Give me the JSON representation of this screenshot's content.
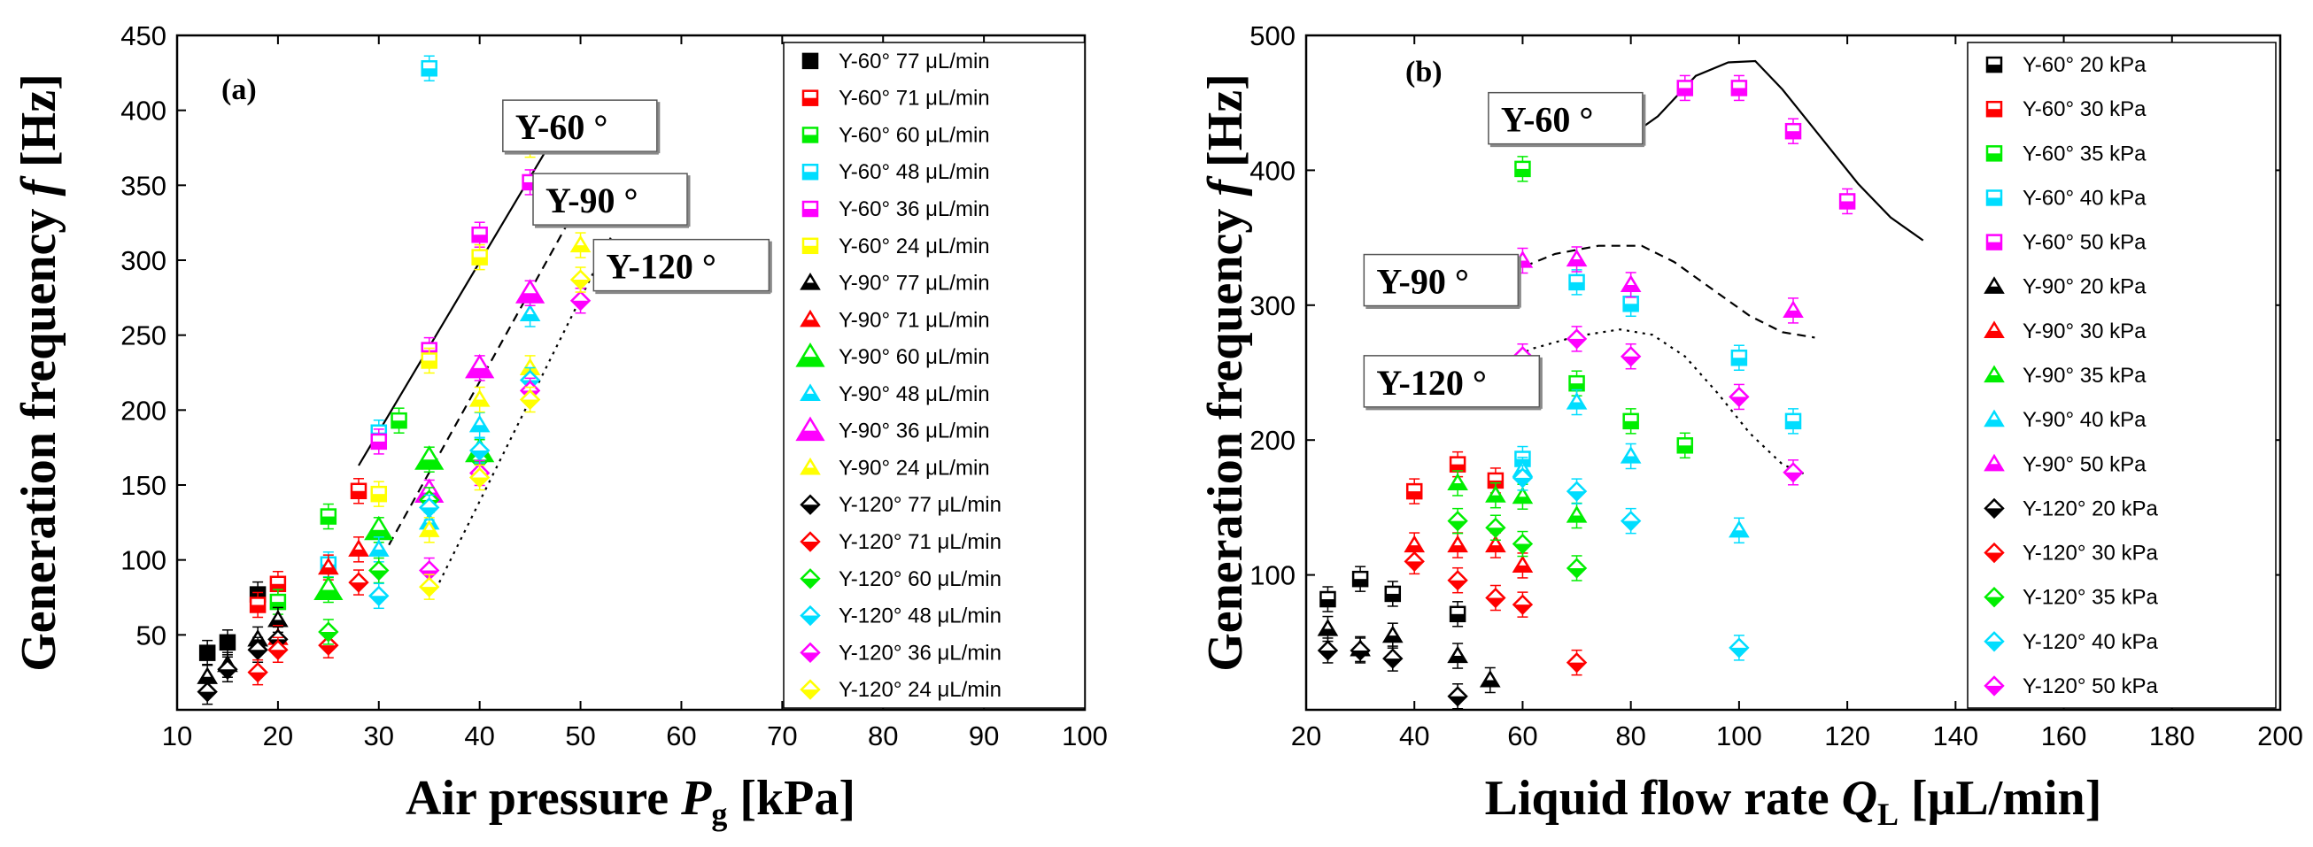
{
  "chart_data": [
    {
      "type": "scatter",
      "panel_label": "(a)",
      "xlabel": "Air pressure P_g [kPa]",
      "xlabel_parts": {
        "main": "Air pressure ",
        "var": "P",
        "sub": "g",
        "unit": " [kPa]"
      },
      "ylabel": "Generation frequency f [Hz]",
      "ylabel_parts": {
        "main": "Generation frequency ",
        "var": "f",
        "unit": " [Hz]"
      },
      "xlim": [
        10,
        100
      ],
      "ylim": [
        0,
        450
      ],
      "xticks": [
        10,
        20,
        30,
        40,
        50,
        60,
        70,
        80,
        90,
        100
      ],
      "yticks": [
        50,
        100,
        150,
        200,
        250,
        300,
        350,
        400,
        450
      ],
      "legend_position": "right",
      "series": [
        {
          "name": "Y-60° 77 μL/min",
          "marker": "square",
          "fill": "solid",
          "color": "#000000",
          "points": [
            [
              13,
              38
            ],
            [
              15,
              45
            ],
            [
              18,
              77
            ]
          ]
        },
        {
          "name": "Y-60° 71 μL/min",
          "marker": "square",
          "fill": "half",
          "color": "#ff0000",
          "points": [
            [
              18,
              70
            ],
            [
              20,
              84
            ],
            [
              28,
              146
            ]
          ]
        },
        {
          "name": "Y-60° 60 μL/min",
          "marker": "square",
          "fill": "half",
          "color": "#00ee00",
          "points": [
            [
              20,
              72
            ],
            [
              25,
              129
            ],
            [
              32,
              193
            ]
          ]
        },
        {
          "name": "Y-60° 48 μL/min",
          "marker": "square",
          "fill": "half",
          "color": "#00ddff",
          "points": [
            [
              25,
              97
            ],
            [
              30,
              185
            ],
            [
              35,
              428
            ]
          ]
        },
        {
          "name": "Y-60° 36 μL/min",
          "marker": "square",
          "fill": "half",
          "color": "#ff00ff",
          "points": [
            [
              30,
              179
            ],
            [
              35,
              240
            ],
            [
              40,
              317
            ],
            [
              45,
              352
            ]
          ]
        },
        {
          "name": "Y-60° 24 μL/min",
          "marker": "square",
          "fill": "half",
          "color": "#ffff00",
          "points": [
            [
              30,
              144
            ],
            [
              35,
              233
            ],
            [
              40,
              302
            ],
            [
              45,
              377
            ]
          ]
        },
        {
          "name": "Y-90° 77 μL/min",
          "marker": "triangle",
          "fill": "half",
          "color": "#000000",
          "points": [
            [
              13,
              22
            ],
            [
              15,
              30
            ],
            [
              18,
              47
            ],
            [
              20,
              60
            ]
          ]
        },
        {
          "name": "Y-90° 71 μL/min",
          "marker": "triangle",
          "fill": "half",
          "color": "#ff0000",
          "points": [
            [
              20,
              48
            ],
            [
              25,
              95
            ],
            [
              28,
              107
            ]
          ]
        },
        {
          "name": "Y-90° 60 μL/min",
          "marker": "triangle",
          "fill": "half",
          "color": "#00ee00",
          "points": [
            [
              25,
              80
            ],
            [
              30,
              120
            ],
            [
              35,
              167
            ],
            [
              40,
              172
            ]
          ]
        },
        {
          "name": "Y-90° 48 μL/min",
          "marker": "triangle",
          "fill": "half",
          "color": "#00ddff",
          "points": [
            [
              30,
              107
            ],
            [
              35,
              125
            ],
            [
              40,
              190
            ],
            [
              45,
              264
            ]
          ]
        },
        {
          "name": "Y-90° 36 μL/min",
          "marker": "triangle",
          "fill": "half",
          "color": "#ff00ff",
          "points": [
            [
              35,
              145
            ],
            [
              40,
              228
            ],
            [
              45,
              278
            ],
            [
              50,
              335
            ]
          ]
        },
        {
          "name": "Y-90° 24 μL/min",
          "marker": "triangle",
          "fill": "half",
          "color": "#ffff00",
          "points": [
            [
              35,
              120
            ],
            [
              40,
              207
            ],
            [
              45,
              228
            ],
            [
              50,
              310
            ]
          ]
        },
        {
          "name": "Y-120° 77 μL/min",
          "marker": "diamond",
          "fill": "half",
          "color": "#000000",
          "points": [
            [
              13,
              12
            ],
            [
              15,
              27
            ],
            [
              18,
              40
            ],
            [
              20,
              47
            ]
          ]
        },
        {
          "name": "Y-120° 71 μL/min",
          "marker": "diamond",
          "fill": "half",
          "color": "#ff0000",
          "points": [
            [
              18,
              25
            ],
            [
              20,
              40
            ],
            [
              25,
              43
            ],
            [
              28,
              85
            ]
          ]
        },
        {
          "name": "Y-120° 60 μL/min",
          "marker": "diamond",
          "fill": "half",
          "color": "#00ee00",
          "points": [
            [
              25,
              52
            ],
            [
              30,
              93
            ],
            [
              35,
              140
            ],
            [
              40,
              167
            ]
          ]
        },
        {
          "name": "Y-120° 48 μL/min",
          "marker": "diamond",
          "fill": "half",
          "color": "#00ddff",
          "points": [
            [
              30,
              76
            ],
            [
              35,
              135
            ],
            [
              40,
              173
            ],
            [
              45,
              220
            ]
          ]
        },
        {
          "name": "Y-120° 36 μL/min",
          "marker": "diamond",
          "fill": "half",
          "color": "#ff00ff",
          "points": [
            [
              35,
              93
            ],
            [
              40,
              158
            ],
            [
              45,
              213
            ],
            [
              50,
              273
            ]
          ]
        },
        {
          "name": "Y-120° 24 μL/min",
          "marker": "diamond",
          "fill": "half",
          "color": "#ffff00",
          "points": [
            [
              35,
              82
            ],
            [
              40,
              155
            ],
            [
              45,
              207
            ],
            [
              50,
              287
            ]
          ]
        }
      ],
      "lines": [
        {
          "label": "Y-60 °",
          "style": "solid",
          "points": [
            [
              28,
              163
            ],
            [
              47,
              378
            ]
          ],
          "label_at": [
            43,
            382
          ]
        },
        {
          "label": "Y-90 °",
          "style": "dashed",
          "points": [
            [
              31,
              110
            ],
            [
              50,
              340
            ]
          ],
          "label_at": [
            46,
            333
          ]
        },
        {
          "label": "Y-120 °",
          "style": "dotted",
          "points": [
            [
              36,
              85
            ],
            [
              53,
              315
            ]
          ],
          "label_at": [
            52,
            289
          ]
        }
      ]
    },
    {
      "type": "scatter",
      "panel_label": "(b)",
      "xlabel": "Liquid flow rate Q_L [μL/min]",
      "xlabel_parts": {
        "main": "Liquid flow rate ",
        "var": "Q",
        "sub": "L",
        "unit": " [μL/min]"
      },
      "ylabel": "Generation frequency f [Hz]",
      "ylabel_parts": {
        "main": "Generation frequency ",
        "var": "f",
        "unit": " [Hz]"
      },
      "xlim": [
        20,
        200
      ],
      "ylim": [
        0,
        500
      ],
      "xticks": [
        20,
        40,
        60,
        80,
        100,
        120,
        140,
        160,
        180,
        200
      ],
      "yticks": [
        100,
        200,
        300,
        400,
        500
      ],
      "legend_position": "right",
      "series": [
        {
          "name": "Y-60° 20 kPa",
          "marker": "square",
          "fill": "half",
          "color": "#000000",
          "points": [
            [
              24,
              82
            ],
            [
              30,
              97
            ],
            [
              36,
              86
            ],
            [
              48,
              71
            ]
          ]
        },
        {
          "name": "Y-60° 30 kPa",
          "marker": "square",
          "fill": "half",
          "color": "#ff0000",
          "points": [
            [
              40,
              162
            ],
            [
              48,
              182
            ],
            [
              55,
              170
            ]
          ]
        },
        {
          "name": "Y-60° 35 kPa",
          "marker": "square",
          "fill": "half",
          "color": "#00ee00",
          "points": [
            [
              60,
              401
            ],
            [
              70,
              242
            ],
            [
              80,
              214
            ],
            [
              90,
              196
            ]
          ]
        },
        {
          "name": "Y-60° 40 kPa",
          "marker": "square",
          "fill": "half",
          "color": "#00ddff",
          "points": [
            [
              60,
              186
            ],
            [
              70,
              317
            ],
            [
              80,
              301
            ],
            [
              100,
              261
            ],
            [
              110,
              214
            ]
          ]
        },
        {
          "name": "Y-60° 50 kPa",
          "marker": "square",
          "fill": "half",
          "color": "#ff00ff",
          "points": [
            [
              90,
              461
            ],
            [
              100,
              461
            ],
            [
              110,
              429
            ],
            [
              120,
              377
            ]
          ]
        },
        {
          "name": "Y-90° 20 kPa",
          "marker": "triangle",
          "fill": "half",
          "color": "#000000",
          "points": [
            [
              24,
              60
            ],
            [
              30,
              45
            ],
            [
              36,
              55
            ],
            [
              48,
              40
            ],
            [
              54,
              22
            ]
          ]
        },
        {
          "name": "Y-90° 30 kPa",
          "marker": "triangle",
          "fill": "half",
          "color": "#ff0000",
          "points": [
            [
              40,
              122
            ],
            [
              48,
              122
            ],
            [
              55,
              122
            ],
            [
              60,
              107
            ]
          ]
        },
        {
          "name": "Y-90° 35 kPa",
          "marker": "triangle",
          "fill": "half",
          "color": "#00ee00",
          "points": [
            [
              48,
              168
            ],
            [
              55,
              159
            ],
            [
              60,
              158
            ],
            [
              70,
              144
            ]
          ]
        },
        {
          "name": "Y-90° 40 kPa",
          "marker": "triangle",
          "fill": "half",
          "color": "#00ddff",
          "points": [
            [
              60,
              178
            ],
            [
              70,
              228
            ],
            [
              80,
              188
            ],
            [
              100,
              133
            ]
          ]
        },
        {
          "name": "Y-90° 50 kPa",
          "marker": "triangle",
          "fill": "half",
          "color": "#ff00ff",
          "points": [
            [
              60,
              333
            ],
            [
              70,
              334
            ],
            [
              80,
              315
            ],
            [
              110,
              296
            ]
          ]
        },
        {
          "name": "Y-120° 20 kPa",
          "marker": "diamond",
          "fill": "half",
          "color": "#000000",
          "points": [
            [
              24,
              44
            ],
            [
              30,
              44
            ],
            [
              36,
              38
            ],
            [
              48,
              10
            ]
          ]
        },
        {
          "name": "Y-120° 30 kPa",
          "marker": "diamond",
          "fill": "half",
          "color": "#ff0000",
          "points": [
            [
              40,
              110
            ],
            [
              48,
              96
            ],
            [
              55,
              83
            ],
            [
              60,
              78
            ],
            [
              70,
              35
            ]
          ]
        },
        {
          "name": "Y-120° 35 kPa",
          "marker": "diamond",
          "fill": "half",
          "color": "#00ee00",
          "points": [
            [
              48,
              140
            ],
            [
              55,
              135
            ],
            [
              60,
              123
            ],
            [
              70,
              105
            ]
          ]
        },
        {
          "name": "Y-120° 40 kPa",
          "marker": "diamond",
          "fill": "half",
          "color": "#00ddff",
          "points": [
            [
              60,
              172
            ],
            [
              70,
              162
            ],
            [
              80,
              140
            ],
            [
              100,
              46
            ]
          ]
        },
        {
          "name": "Y-120° 50 kPa",
          "marker": "diamond",
          "fill": "half",
          "color": "#ff00ff",
          "points": [
            [
              60,
              262
            ],
            [
              70,
              275
            ],
            [
              80,
              262
            ],
            [
              100,
              232
            ],
            [
              110,
              176
            ]
          ]
        }
      ],
      "lines": [
        {
          "label": "Y-60 °",
          "style": "solid",
          "points": [
            [
              78,
              420
            ],
            [
              85,
              440
            ],
            [
              92,
              470
            ],
            [
              98,
              480
            ],
            [
              103,
              481
            ],
            [
              108,
              460
            ],
            [
              115,
              425
            ],
            [
              122,
              390
            ],
            [
              128,
              365
            ],
            [
              134,
              348
            ]
          ],
          "label_at": [
            55,
            430
          ]
        },
        {
          "label": "Y-90 °",
          "style": "dashed",
          "points": [
            [
              50,
              312
            ],
            [
              58,
              325
            ],
            [
              66,
              338
            ],
            [
              74,
              344
            ],
            [
              82,
              344
            ],
            [
              88,
              332
            ],
            [
              95,
              312
            ],
            [
              102,
              292
            ],
            [
              108,
              280
            ],
            [
              114,
              276
            ]
          ],
          "label_at": [
            32,
            310
          ]
        },
        {
          "label": "Y-120 °",
          "style": "dotted",
          "points": [
            [
              46,
              238
            ],
            [
              54,
              255
            ],
            [
              62,
              268
            ],
            [
              70,
              277
            ],
            [
              78,
              282
            ],
            [
              84,
              278
            ],
            [
              90,
              262
            ],
            [
              96,
              235
            ],
            [
              102,
              205
            ],
            [
              108,
              182
            ],
            [
              112,
              175
            ]
          ],
          "label_at": [
            32,
            235
          ]
        }
      ]
    }
  ]
}
